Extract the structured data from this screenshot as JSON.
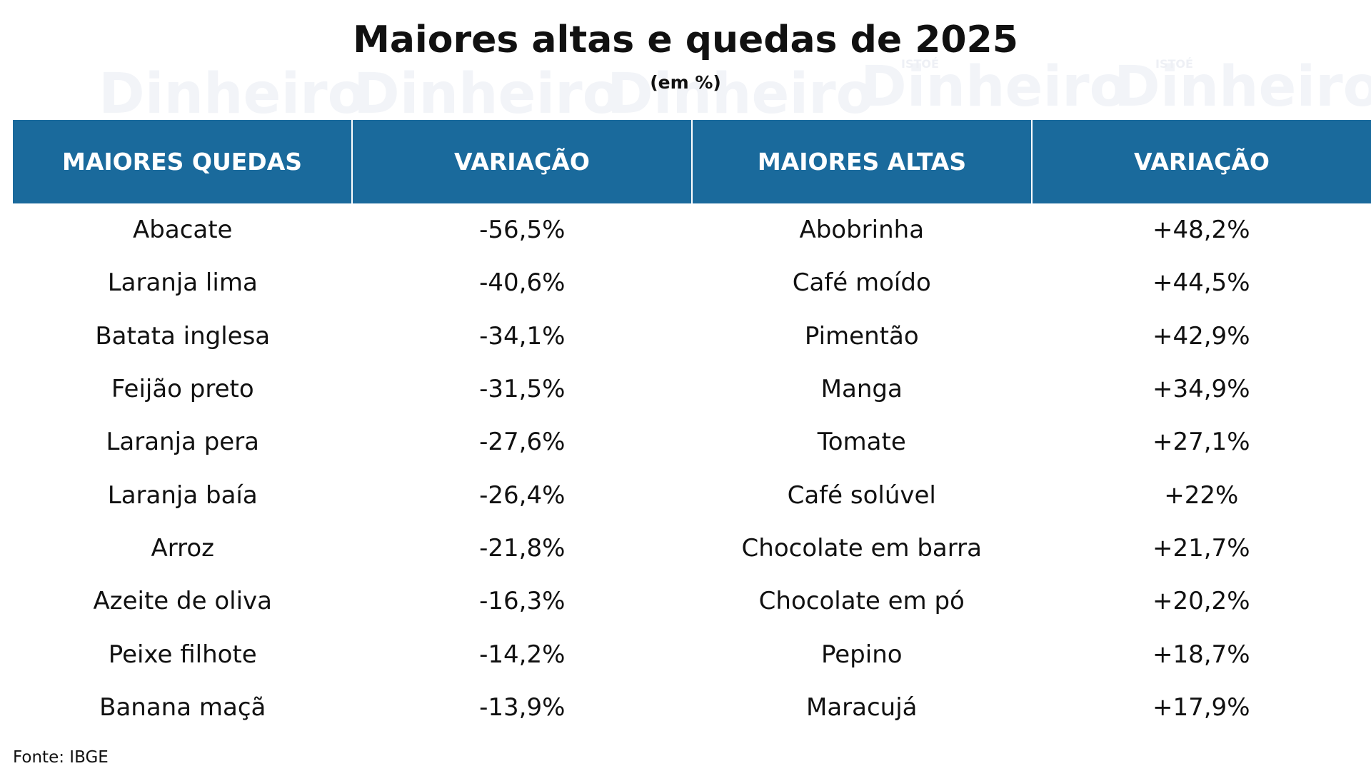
{
  "header": {
    "title": "Maiores altas e quedas de 2025",
    "subtitle": "(em %)"
  },
  "watermark": {
    "brand": "Dinheiro",
    "tag": "ISTOÉ"
  },
  "table": {
    "columns": [
      "MAIORES QUEDAS",
      "VARIAÇÃO",
      "MAIORES ALTAS",
      "VARIAÇÃO"
    ],
    "rows": [
      [
        "Abacate",
        "-56,5%",
        "Abobrinha",
        "+48,2%"
      ],
      [
        "Laranja lima",
        "-40,6%",
        "Café moído",
        "+44,5%"
      ],
      [
        "Batata inglesa",
        "-34,1%",
        "Pimentão",
        "+42,9%"
      ],
      [
        "Feijão preto",
        "-31,5%",
        "Manga",
        "+34,9%"
      ],
      [
        "Laranja pera",
        "-27,6%",
        "Tomate",
        "+27,1%"
      ],
      [
        "Laranja baía",
        "-26,4%",
        "Café solúvel",
        "+22%"
      ],
      [
        "Arroz",
        "-21,8%",
        "Chocolate em barra",
        "+21,7%"
      ],
      [
        "Azeite de oliva",
        "-16,3%",
        "Chocolate em pó",
        "+20,2%"
      ],
      [
        "Peixe filhote",
        "-14,2%",
        "Pepino",
        "+18,7%"
      ],
      [
        "Banana maçã",
        "-13,9%",
        "Maracujá",
        "+17,9%"
      ]
    ]
  },
  "source": "Fonte: IBGE"
}
